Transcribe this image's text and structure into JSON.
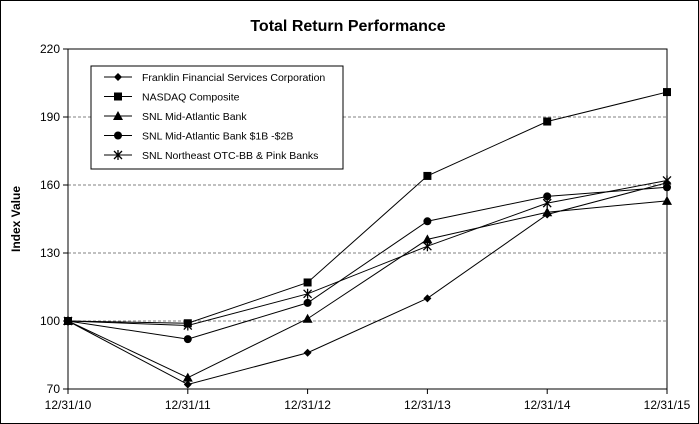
{
  "chart_data": {
    "type": "line",
    "title": "Total Return Performance",
    "xlabel": "",
    "ylabel": "Index Value",
    "x": [
      "12/31/10",
      "12/31/11",
      "12/31/12",
      "12/31/13",
      "12/31/14",
      "12/31/15"
    ],
    "ylim": [
      70,
      220
    ],
    "yticks": [
      70,
      100,
      130,
      160,
      190,
      220
    ],
    "grid": "horizontal dashed",
    "legend": "top-left",
    "series": [
      {
        "name": "Franklin Financial Services Corporation",
        "marker": "diamond",
        "values": [
          100,
          72,
          86,
          110,
          147,
          161
        ]
      },
      {
        "name": "NASDAQ Composite",
        "marker": "square",
        "values": [
          100,
          99,
          117,
          164,
          188,
          201
        ]
      },
      {
        "name": "SNL Mid-Atlantic Bank",
        "marker": "triangle",
        "values": [
          100,
          75,
          101,
          136,
          148,
          153
        ]
      },
      {
        "name": "SNL Mid-Atlantic Bank $1B -$2B",
        "marker": "circle",
        "values": [
          100,
          92,
          108,
          144,
          155,
          159
        ]
      },
      {
        "name": "SNL Northeast OTC-BB & Pink Banks",
        "marker": "star",
        "values": [
          100,
          98,
          112,
          133,
          152,
          162
        ]
      }
    ]
  }
}
